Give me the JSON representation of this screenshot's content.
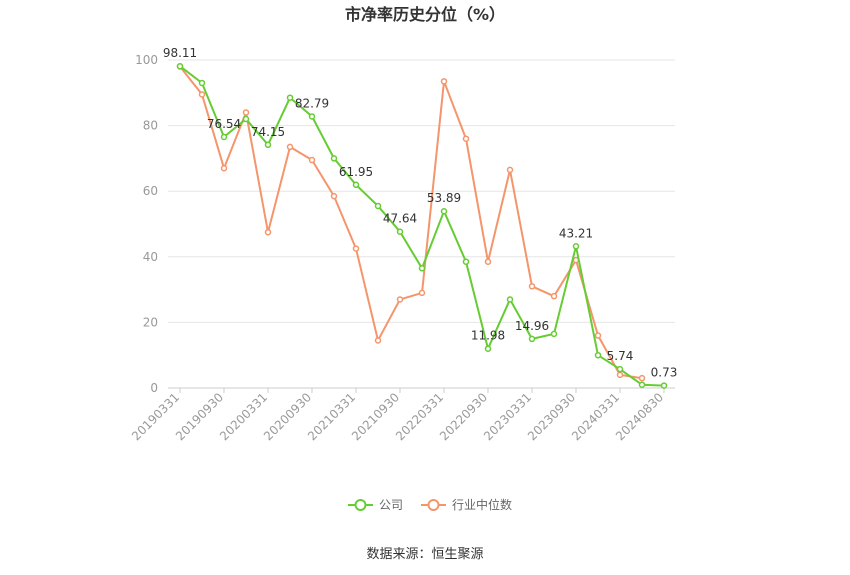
{
  "chart_data": {
    "type": "line",
    "title": "市净率历史分位（%）",
    "ylim": [
      0,
      100
    ],
    "yticks": [
      0,
      20,
      40,
      60,
      80,
      100
    ],
    "grid": true,
    "legend_position": "bottom",
    "x_tick_labels": [
      "20190331",
      "20190930",
      "20200331",
      "20200930",
      "20210331",
      "20210930",
      "20220331",
      "20220930",
      "20230331",
      "20230930",
      "20240331",
      "20240830"
    ],
    "x": [
      "20190331",
      "20190630",
      "20190930",
      "20191231",
      "20200331",
      "20200630",
      "20200930",
      "20201231",
      "20210331",
      "20210630",
      "20210930",
      "20211231",
      "20220331",
      "20220630",
      "20220930",
      "20221231",
      "20230331",
      "20230630",
      "20230930",
      "20231231",
      "20240331",
      "20240630",
      "20240830"
    ],
    "series": [
      {
        "name": "公司",
        "color": "#66cc33",
        "values": [
          98.11,
          93.0,
          76.54,
          82.0,
          74.15,
          88.5,
          82.79,
          70.0,
          61.95,
          55.5,
          47.64,
          36.5,
          53.89,
          38.5,
          11.98,
          27.0,
          14.96,
          16.5,
          43.21,
          10.0,
          5.74,
          1.0,
          0.73
        ],
        "labels": {
          "0": "98.11",
          "2": "76.54",
          "4": "74.15",
          "6": "82.79",
          "8": "61.95",
          "10": "47.64",
          "12": "53.89",
          "14": "11.98",
          "16": "14.96",
          "18": "43.21",
          "20": "5.74",
          "22": "0.73"
        }
      },
      {
        "name": "行业中位数",
        "color": "#f4956b",
        "values": [
          98.0,
          89.5,
          67.0,
          84.0,
          47.5,
          73.5,
          69.5,
          58.5,
          42.5,
          14.5,
          27.0,
          29.0,
          93.5,
          76.0,
          38.5,
          66.5,
          31.0,
          28.0,
          39.0,
          16.0,
          4.0,
          3.0,
          null
        ]
      }
    ]
  },
  "source_text": "数据来源：恒生聚源"
}
